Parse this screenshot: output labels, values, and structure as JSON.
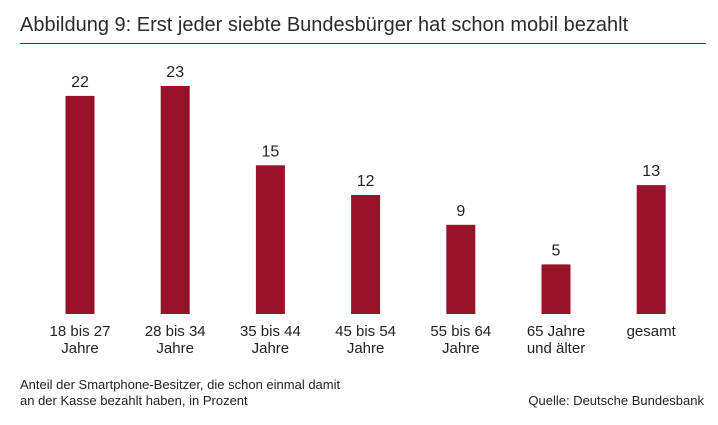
{
  "figure": {
    "title": "Abbildung 9: Erst jeder siebte Bundesbürger hat schon mobil bezahlt",
    "footnote_lines": [
      "Anteil der Smartphone-Besitzer, die schon einmal damit",
      "an der Kasse bezahlt haben, in Prozent"
    ],
    "source": "Quelle: Deutsche Bundesbank"
  },
  "colors": {
    "bar": "#961328",
    "text": "#222222",
    "rule": "#7a1a2a"
  },
  "chart_data": {
    "type": "bar",
    "title": "Abbildung 9: Erst jeder siebte Bundesbürger hat schon mobil bezahlt",
    "categories": [
      [
        "18 bis 27",
        "Jahre"
      ],
      [
        "28 bis 34",
        "Jahre"
      ],
      [
        "35 bis 44",
        "Jahre"
      ],
      [
        "45 bis 54",
        "Jahre"
      ],
      [
        "55 bis 64",
        "Jahre"
      ],
      [
        "65 Jahre",
        "und älter"
      ],
      [
        "gesamt"
      ]
    ],
    "values": [
      22,
      23,
      15,
      12,
      9,
      5,
      13
    ],
    "data_labels": [
      "22",
      "23",
      "15",
      "12",
      "9",
      "5",
      "13"
    ],
    "ylim": [
      0,
      23
    ],
    "grid": false,
    "legend": "none",
    "xlabel": "",
    "ylabel": ""
  }
}
